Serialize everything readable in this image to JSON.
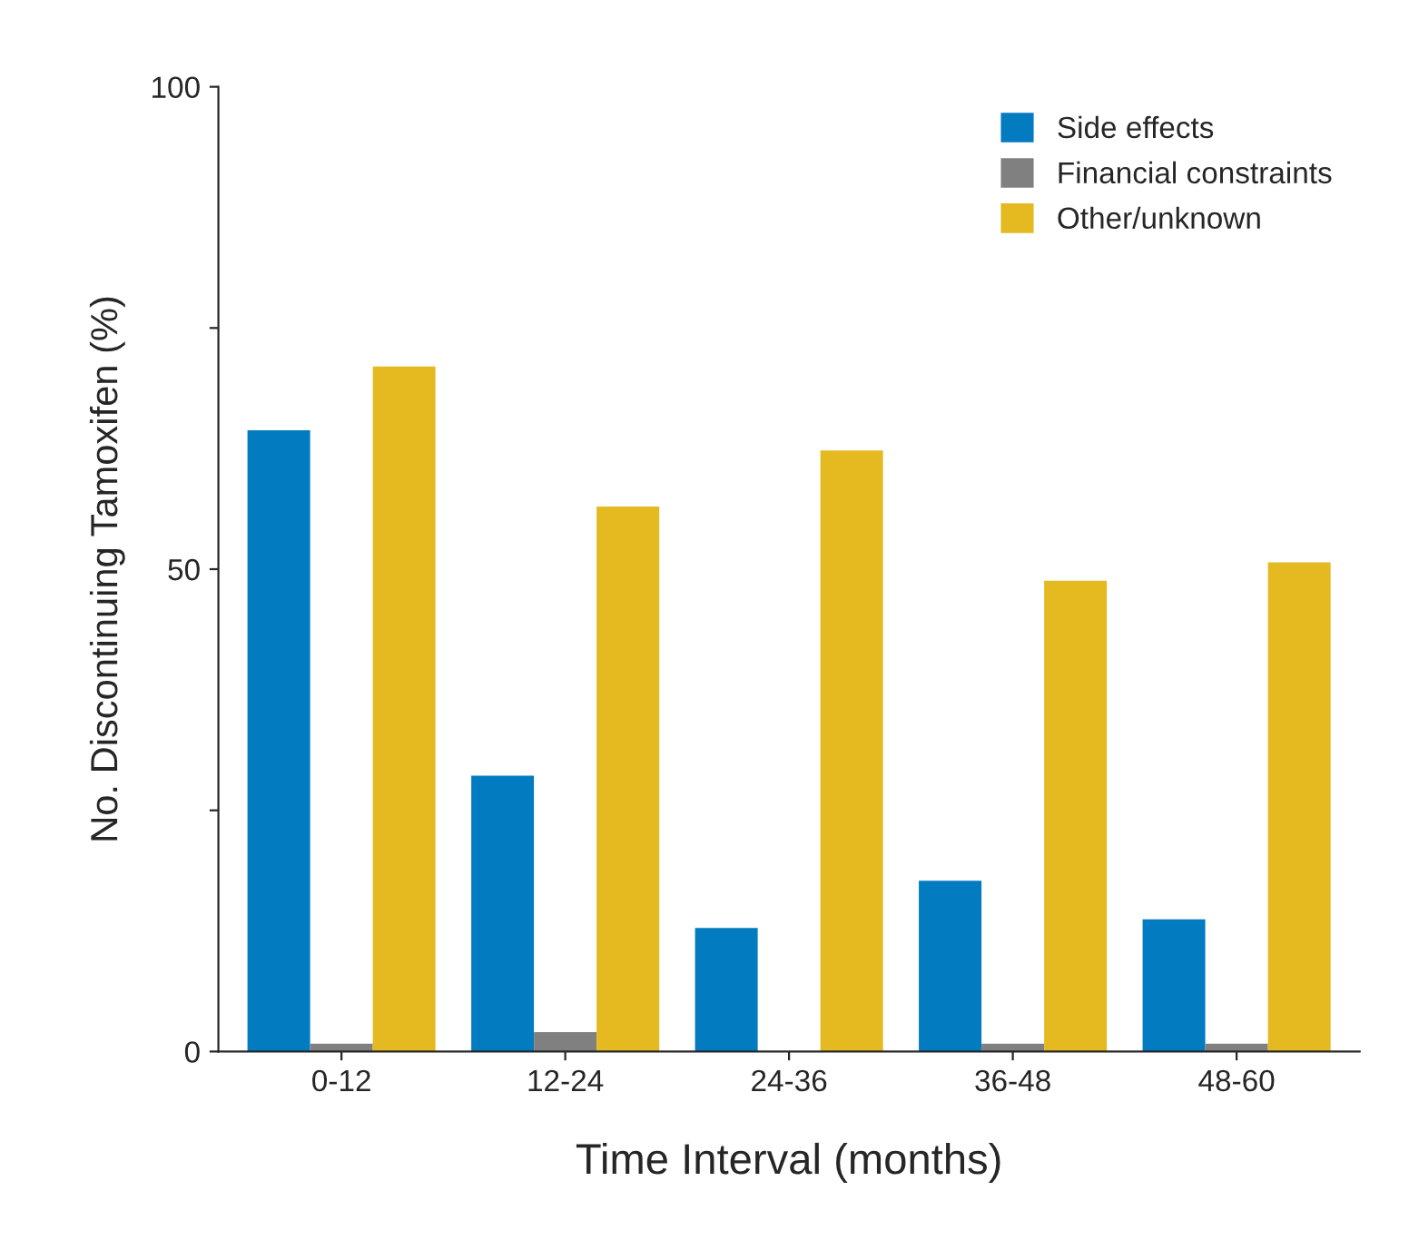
{
  "chart_data": {
    "type": "bar",
    "xlabel": "Time Interval (months)",
    "ylabel": "No. Discontinuing Tamoxifen (%)",
    "categories": [
      "0-12",
      "12-24",
      "24-36",
      "36-48",
      "48-60"
    ],
    "series": [
      {
        "name": "Side effects",
        "color": "#037bc1",
        "values": [
          64.4,
          28.6,
          12.8,
          17.7,
          13.7
        ]
      },
      {
        "name": "Financial constraints",
        "color": "#808080",
        "values": [
          0.8,
          2,
          0,
          0.8,
          0.8
        ]
      },
      {
        "name": "Other/unknown",
        "color": "#e5b920",
        "values": [
          71,
          56.5,
          62.3,
          48.8,
          50.7
        ]
      }
    ],
    "ylim": [
      0,
      100
    ],
    "yticks": [
      0,
      {
        "value": 25,
        "label": null
      },
      50,
      {
        "value": 75,
        "label": null
      },
      100
    ],
    "grid": false,
    "legend": "top right"
  }
}
